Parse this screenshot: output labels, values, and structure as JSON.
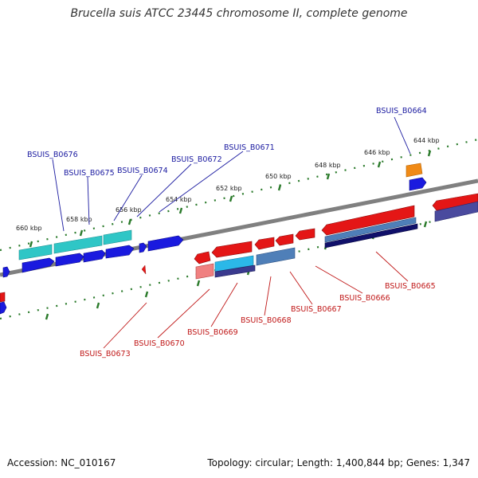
{
  "title": "Brucella suis ATCC 23445 chromosome II, complete genome",
  "footer": {
    "accession": "Accession: NC_010167",
    "summary": "Topology: circular; Length: 1,400,844 bp; Genes: 1,347"
  },
  "colors": {
    "backbone": "#808080",
    "ticks": "#2a7a2a",
    "forward_label": "#1a1aa0",
    "reverse_label": "#c01818",
    "forward_gene": "#1a1adf",
    "reverse_gene": "#e41616",
    "feature_cyan": "#2fc6c6",
    "feature_steel": "#4f7fb8",
    "feature_navy": "#1c1c7a",
    "feature_orange": "#f08a16"
  },
  "scale": {
    "ticks": [
      {
        "label": "644 kbp",
        "kbp": 644
      },
      {
        "label": "646 kbp",
        "kbp": 646
      },
      {
        "label": "648 kbp",
        "kbp": 648
      },
      {
        "label": "650 kbp",
        "kbp": 650
      },
      {
        "label": "652 kbp",
        "kbp": 652
      },
      {
        "label": "654 kbp",
        "kbp": 654
      },
      {
        "label": "656 kbp",
        "kbp": 656
      },
      {
        "label": "658 kbp",
        "kbp": 658
      },
      {
        "label": "660 kbp",
        "kbp": 660
      }
    ]
  },
  "labels": {
    "forward": [
      {
        "text": "BSUIS_B0664"
      },
      {
        "text": "BSUIS_B0671"
      },
      {
        "text": "BSUIS_B0672"
      },
      {
        "text": "BSUIS_B0674"
      },
      {
        "text": "BSUIS_B0675"
      },
      {
        "text": "BSUIS_B0676"
      }
    ],
    "reverse": [
      {
        "text": "BSUIS_B0665"
      },
      {
        "text": "BSUIS_B0666"
      },
      {
        "text": "BSUIS_B0667"
      },
      {
        "text": "BSUIS_B0668"
      },
      {
        "text": "BSUIS_B0669"
      },
      {
        "text": "BSUIS_B0670"
      },
      {
        "text": "BSUIS_B0673"
      }
    ]
  }
}
